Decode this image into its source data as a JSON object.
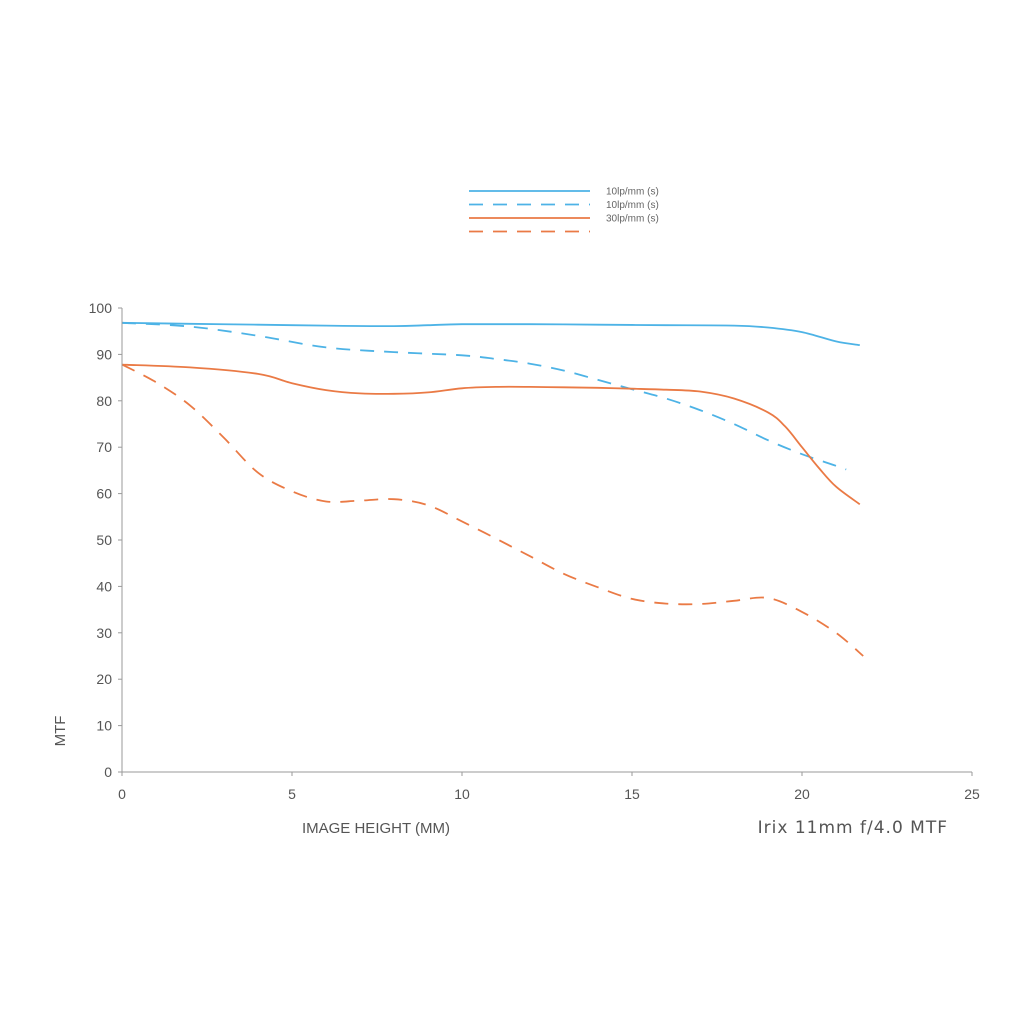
{
  "chart_data": {
    "type": "line",
    "title": "Irix 11mm f/4.0 MTF",
    "xlabel": "IMAGE HEIGHT (MM)",
    "ylabel": "MTF",
    "xlim": [
      0,
      25
    ],
    "ylim": [
      0,
      100
    ],
    "xticks": [
      0,
      5,
      10,
      15,
      20,
      25
    ],
    "yticks": [
      0,
      10,
      20,
      30,
      40,
      50,
      60,
      70,
      80,
      90,
      100
    ],
    "grid": false,
    "legend_position": "top-center",
    "series": [
      {
        "name": "10lp/mm (s)",
        "color": "#4db3e6",
        "style": "solid",
        "x": [
          0,
          2,
          4,
          6,
          8,
          9,
          10,
          12,
          14,
          16,
          18,
          19,
          20,
          21,
          21.7
        ],
        "y": [
          96.8,
          96.6,
          96.4,
          96.2,
          96.1,
          96.3,
          96.5,
          96.5,
          96.4,
          96.3,
          96.2,
          95.8,
          94.8,
          92.8,
          92
        ]
      },
      {
        "name": "10lp/mm (s)",
        "color": "#4db3e6",
        "style": "dashed",
        "x": [
          0,
          2,
          4,
          6,
          8,
          10,
          11,
          12,
          13,
          14,
          15,
          16,
          17,
          18,
          19,
          20,
          21,
          21.3
        ],
        "y": [
          96.8,
          96,
          94,
          91.5,
          90.5,
          89.8,
          89,
          88,
          86.5,
          84.5,
          82.5,
          80.5,
          78,
          75,
          71.5,
          68.5,
          66,
          65.2
        ]
      },
      {
        "name": "30lp/mm (s)",
        "color": "#ea7a45",
        "style": "solid",
        "x": [
          0,
          2,
          4,
          5,
          6,
          7,
          8,
          9,
          10,
          11,
          12,
          13,
          14,
          15,
          16,
          17,
          18,
          19,
          19.5,
          20,
          20.5,
          21,
          21.7
        ],
        "y": [
          87.8,
          87.2,
          85.8,
          83.8,
          82.3,
          81.6,
          81.5,
          81.8,
          82.7,
          83,
          83,
          82.9,
          82.8,
          82.6,
          82.4,
          82,
          80.5,
          77.5,
          74.5,
          70,
          65.5,
          61.5,
          57.7
        ]
      },
      {
        "name": "",
        "color": "#ea7a45",
        "style": "dashed",
        "x": [
          0,
          1,
          2,
          3,
          4,
          5,
          6,
          7,
          8,
          9,
          10,
          11,
          12,
          13,
          14,
          15,
          16,
          17,
          18,
          19,
          20,
          21,
          21.8
        ],
        "y": [
          87.8,
          84,
          79,
          72,
          64.5,
          60.5,
          58.3,
          58.5,
          58.8,
          57.5,
          54,
          50.3,
          46.5,
          42.7,
          39.8,
          37.3,
          36.3,
          36.2,
          36.9,
          37.5,
          34.5,
          30,
          25
        ]
      }
    ]
  }
}
